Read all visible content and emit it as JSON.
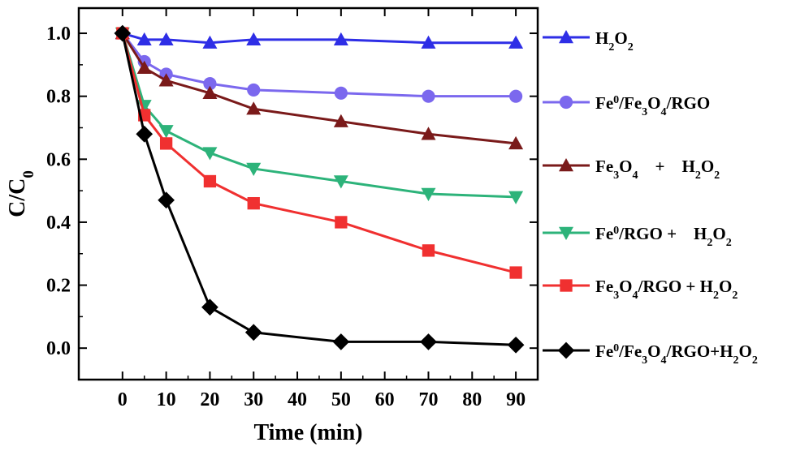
{
  "chart_data": {
    "type": "line",
    "xlabel": "Time (min)",
    "ylabel": {
      "main": "C/C",
      "sub": "0"
    },
    "xlim": [
      -10,
      95
    ],
    "ylim": [
      -0.1,
      1.08
    ],
    "xticks": [
      "0",
      "10",
      "20",
      "30",
      "40",
      "50",
      "60",
      "70",
      "80",
      "90"
    ],
    "yticks": [
      "0.0",
      "0.2",
      "0.4",
      "0.6",
      "0.8",
      "1.0"
    ],
    "grid": false,
    "legend_position": "right",
    "series": [
      {
        "name": "H2O2",
        "label_parts": [
          {
            "t": "H"
          },
          {
            "t": "2",
            "sub": true
          },
          {
            "t": "O"
          },
          {
            "t": "2",
            "sub": true
          }
        ],
        "color": "#2e2ee6",
        "marker": "triangle-up",
        "x": [
          0,
          5,
          10,
          20,
          30,
          50,
          70,
          90
        ],
        "y": [
          1.0,
          0.98,
          0.98,
          0.97,
          0.98,
          0.98,
          0.97,
          0.97
        ]
      },
      {
        "name": "Fe0/Fe3O4/RGO",
        "label_parts": [
          {
            "t": "Fe"
          },
          {
            "t": "0",
            "sup": true
          },
          {
            "t": "/Fe"
          },
          {
            "t": "3",
            "sub": true
          },
          {
            "t": "O"
          },
          {
            "t": "4",
            "sub": true
          },
          {
            "t": "/RGO"
          }
        ],
        "color": "#7b68ee",
        "marker": "circle",
        "x": [
          0,
          5,
          10,
          20,
          30,
          50,
          70,
          90
        ],
        "y": [
          1.0,
          0.91,
          0.87,
          0.84,
          0.82,
          0.81,
          0.8,
          0.8
        ]
      },
      {
        "name": "Fe3O4 + H2O2",
        "label_parts": [
          {
            "t": "Fe"
          },
          {
            "t": "3",
            "sub": true
          },
          {
            "t": "O"
          },
          {
            "t": "4",
            "sub": true
          },
          {
            "t": "    +    H"
          },
          {
            "t": "2",
            "sub": true
          },
          {
            "t": "O"
          },
          {
            "t": "2",
            "sub": true
          }
        ],
        "color": "#7a1a1a",
        "marker": "triangle-up",
        "x": [
          0,
          5,
          10,
          20,
          30,
          50,
          70,
          90
        ],
        "y": [
          1.0,
          0.89,
          0.85,
          0.81,
          0.76,
          0.72,
          0.68,
          0.65
        ]
      },
      {
        "name": "Fe0/RGO + H2O2",
        "label_parts": [
          {
            "t": "Fe"
          },
          {
            "t": "0",
            "sup": true
          },
          {
            "t": "/RGO +    H"
          },
          {
            "t": "2",
            "sub": true
          },
          {
            "t": "O"
          },
          {
            "t": "2",
            "sub": true
          }
        ],
        "color": "#2db37a",
        "marker": "triangle-down",
        "x": [
          0,
          5,
          10,
          20,
          30,
          50,
          70,
          90
        ],
        "y": [
          1.0,
          0.77,
          0.69,
          0.62,
          0.57,
          0.53,
          0.49,
          0.48
        ]
      },
      {
        "name": "Fe3O4/RGO + H2O2",
        "label_parts": [
          {
            "t": "Fe"
          },
          {
            "t": "3",
            "sub": true
          },
          {
            "t": "O"
          },
          {
            "t": "4",
            "sub": true
          },
          {
            "t": "/RGO + H"
          },
          {
            "t": "2",
            "sub": true
          },
          {
            "t": "O"
          },
          {
            "t": "2",
            "sub": true
          }
        ],
        "color": "#f03030",
        "marker": "square",
        "x": [
          0,
          5,
          10,
          20,
          30,
          50,
          70,
          90
        ],
        "y": [
          1.0,
          0.74,
          0.65,
          0.53,
          0.46,
          0.4,
          0.31,
          0.24
        ]
      },
      {
        "name": "Fe0/Fe3O4/RGO+H2O2",
        "label_parts": [
          {
            "t": "Fe"
          },
          {
            "t": "0",
            "sup": true
          },
          {
            "t": "/Fe"
          },
          {
            "t": "3",
            "sub": true
          },
          {
            "t": "O"
          },
          {
            "t": "4",
            "sub": true
          },
          {
            "t": "/RGO+H"
          },
          {
            "t": "2",
            "sub": true
          },
          {
            "t": "O"
          },
          {
            "t": "2",
            "sub": true
          }
        ],
        "color": "#000000",
        "marker": "diamond",
        "x": [
          0,
          5,
          10,
          20,
          30,
          50,
          70,
          90
        ],
        "y": [
          1.0,
          0.68,
          0.47,
          0.13,
          0.05,
          0.02,
          0.02,
          0.01
        ]
      }
    ]
  }
}
